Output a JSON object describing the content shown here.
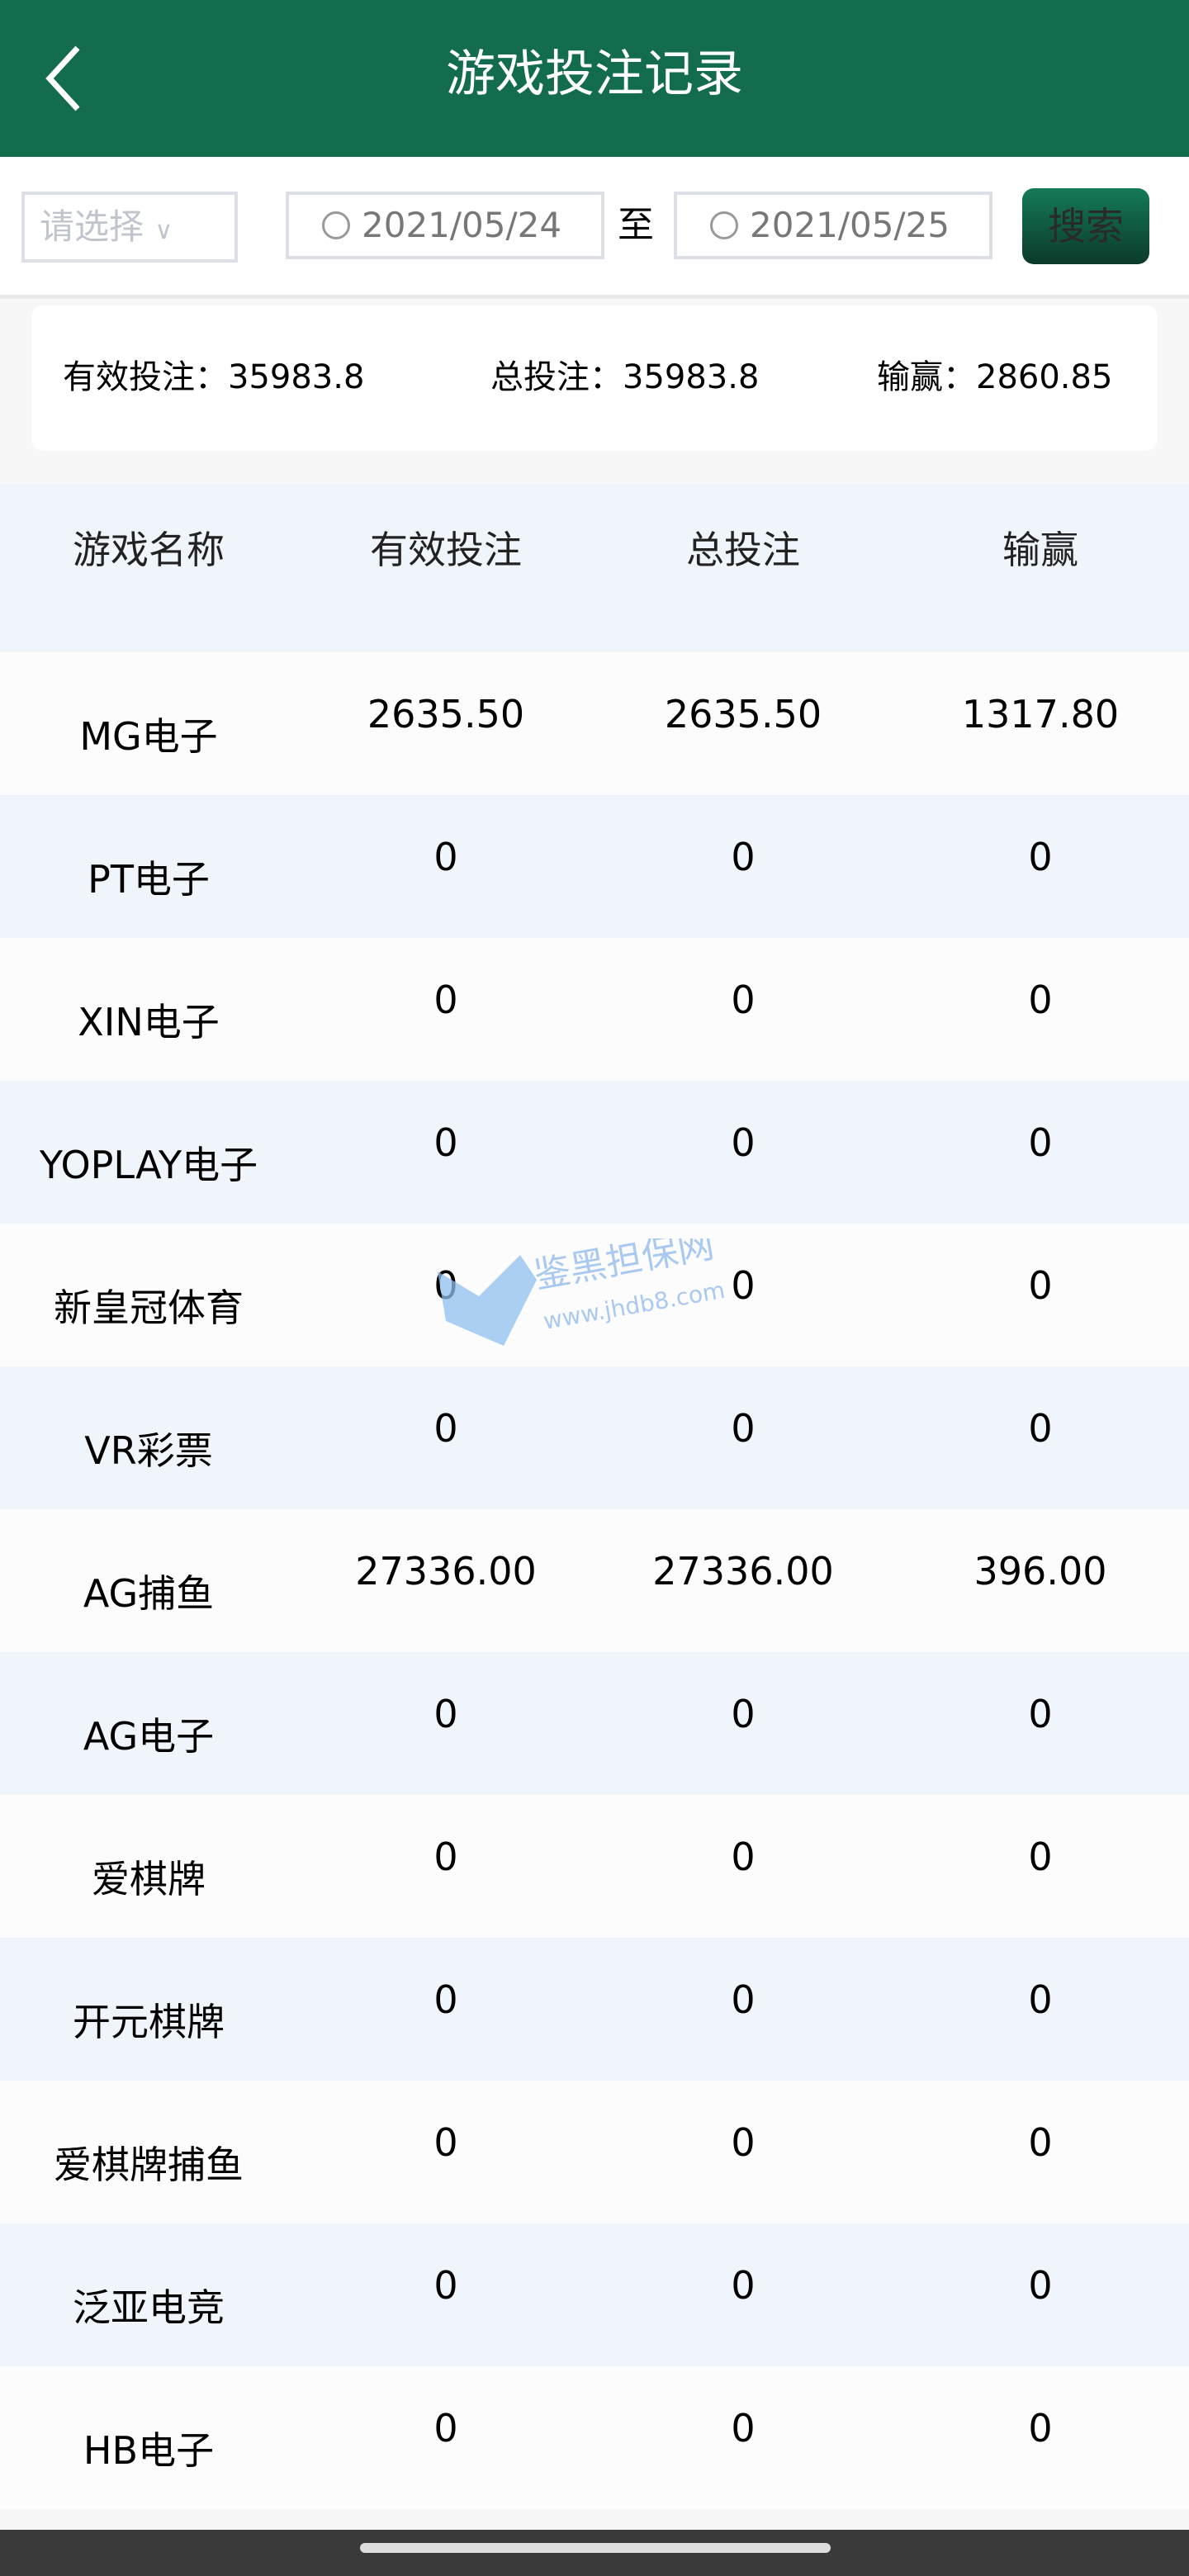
{
  "header": {
    "title": "游戏投注记录",
    "back_icon": "chevron-left-icon"
  },
  "filter": {
    "select_placeholder": "请选择",
    "start_date": "2021/05/24",
    "to_label": "至",
    "end_date": "2021/05/25",
    "search_label": "搜索"
  },
  "summary": {
    "valid_bet": "有效投注：35983.8",
    "total_bet": "总投注：35983.8",
    "win_loss": "输赢：2860.85"
  },
  "table": {
    "columns": [
      "游戏名称",
      "有效投注",
      "总投注",
      "输赢"
    ],
    "rows": [
      [
        "MG电子",
        "2635.50",
        "2635.50",
        "1317.80"
      ],
      [
        "PT电子",
        "0",
        "0",
        "0"
      ],
      [
        "XIN电子",
        "0",
        "0",
        "0"
      ],
      [
        "YOPLAY电子",
        "0",
        "0",
        "0"
      ],
      [
        "新皇冠体育",
        "0",
        "0",
        "0"
      ],
      [
        "VR彩票",
        "0",
        "0",
        "0"
      ],
      [
        "AG捕鱼",
        "27336.00",
        "27336.00",
        "396.00"
      ],
      [
        "AG电子",
        "0",
        "0",
        "0"
      ],
      [
        "爱棋牌",
        "0",
        "0",
        "0"
      ],
      [
        "开元棋牌",
        "0",
        "0",
        "0"
      ],
      [
        "爱棋牌捕鱼",
        "0",
        "0",
        "0"
      ],
      [
        "泛亚电竞",
        "0",
        "0",
        "0"
      ],
      [
        "HB电子",
        "0",
        "0",
        "0"
      ]
    ]
  },
  "watermark": {
    "text": "鉴黑担保网",
    "url": "www.jhdb8.com"
  },
  "colors": {
    "brand": "#146c4f",
    "row_alt": "#f0f5fc"
  }
}
